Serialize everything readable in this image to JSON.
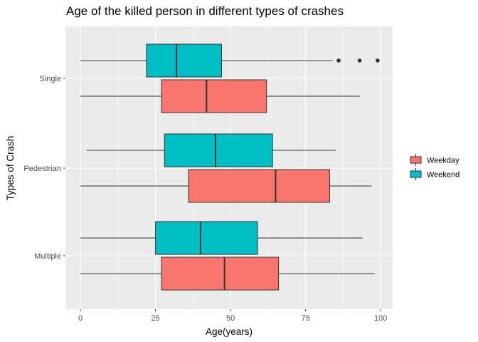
{
  "chart_data": {
    "type": "boxplot",
    "title": "Age of the killed person in different types of crashes",
    "xlabel": "Age(years)",
    "ylabel": "Types of Crash",
    "xlim": [
      -5,
      104
    ],
    "x_ticks": [
      0,
      25,
      50,
      75,
      100
    ],
    "x_tick_labels": [
      "0",
      "25",
      "50",
      "75",
      "100"
    ],
    "categories": [
      "Single",
      "Pedestrian",
      "Multiple"
    ],
    "legend": {
      "position": "right",
      "entries": [
        "Weekday",
        "Weekend"
      ]
    },
    "grid": true,
    "series": [
      {
        "name": "Weekday",
        "color": "#F8766D",
        "boxes": [
          {
            "category": "Single",
            "min": 0,
            "q1": 27,
            "median": 42,
            "q3": 62,
            "max": 93,
            "outliers": []
          },
          {
            "category": "Pedestrian",
            "min": 0,
            "q1": 36,
            "median": 65,
            "q3": 83,
            "max": 97,
            "outliers": []
          },
          {
            "category": "Multiple",
            "min": 0,
            "q1": 27,
            "median": 48,
            "q3": 66,
            "max": 98,
            "outliers": []
          }
        ]
      },
      {
        "name": "Weekend",
        "color": "#00BFC4",
        "boxes": [
          {
            "category": "Single",
            "min": 0,
            "q1": 22,
            "median": 32,
            "q3": 47,
            "max": 84,
            "outliers": [
              86,
              93,
              99
            ]
          },
          {
            "category": "Pedestrian",
            "min": 2,
            "q1": 28,
            "median": 45,
            "q3": 64,
            "max": 85,
            "outliers": []
          },
          {
            "category": "Multiple",
            "min": 0,
            "q1": 25,
            "median": 40,
            "q3": 59,
            "max": 94,
            "outliers": []
          }
        ]
      }
    ]
  }
}
